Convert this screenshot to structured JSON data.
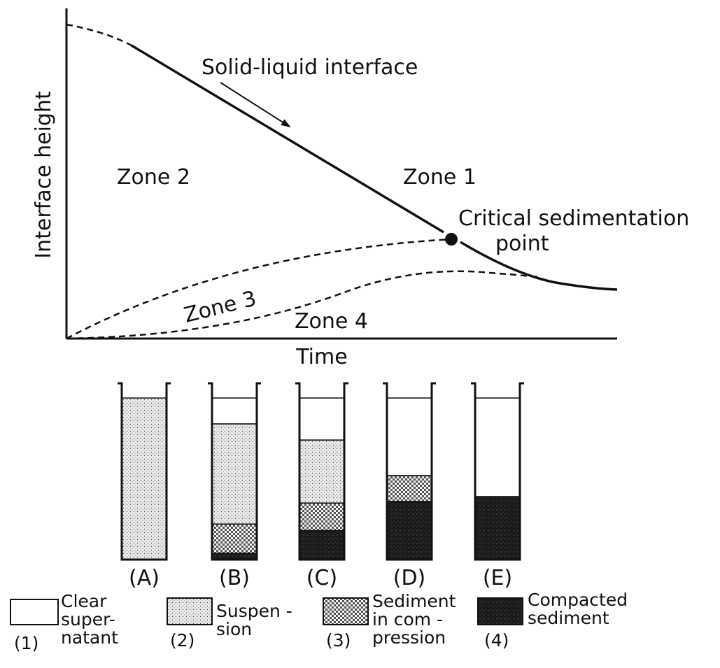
{
  "axes": {
    "ylabel": "Interface height",
    "xlabel": "Time"
  },
  "annotations": {
    "interface_label": "Solid-liquid interface",
    "zone1": "Zone 1",
    "zone2": "Zone 2",
    "zone3": "Zone 3",
    "zone4": "Zone 4",
    "critical_line1": "Critical sedimentation",
    "critical_line2": "point"
  },
  "cylinders": [
    {
      "label": "(A)",
      "layers": {
        "clear": 0,
        "suspension": 1.0,
        "compression": 0,
        "compacted": 0
      }
    },
    {
      "label": "(B)",
      "layers": {
        "clear": 0.16,
        "suspension": 0.62,
        "compression": 0.18,
        "compacted": 0.04
      }
    },
    {
      "label": "(C)",
      "layers": {
        "clear": 0.26,
        "suspension": 0.39,
        "compression": 0.17,
        "compacted": 0.18
      }
    },
    {
      "label": "(D)",
      "layers": {
        "clear": 0.48,
        "suspension": 0,
        "compression": 0.16,
        "compacted": 0.36
      }
    },
    {
      "label": "(E)",
      "layers": {
        "clear": 0.61,
        "suspension": 0,
        "compression": 0,
        "compacted": 0.39
      }
    }
  ],
  "legend": [
    {
      "number": "(1)",
      "lines": [
        "Clear",
        "super-",
        "natant"
      ],
      "swatch": "clear"
    },
    {
      "number": "(2)",
      "lines": [
        "Suspen -",
        "sion"
      ],
      "swatch": "suspension"
    },
    {
      "number": "(3)",
      "lines": [
        "Sediment",
        "in com -",
        "pression"
      ],
      "swatch": "compression"
    },
    {
      "number": "(4)",
      "lines": [
        "Compacted",
        "sediment"
      ],
      "swatch": "compacted"
    }
  ]
}
